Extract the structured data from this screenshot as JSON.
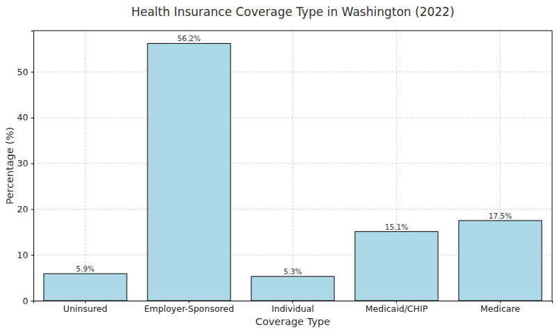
{
  "chart_data": {
    "type": "bar",
    "title": "Health Insurance Coverage Type in Washington (2022)",
    "x_label": "Coverage Type",
    "y_label": "Percentage (%)",
    "categories": [
      "Uninsured",
      "Employer-Sponsored",
      "Individual",
      "Medicaid/CHIP",
      "Medicare"
    ],
    "values": [
      5.9,
      56.2,
      5.3,
      15.1,
      17.5
    ],
    "value_labels": [
      "5.9%",
      "56.2%",
      "5.3%",
      "15.1%",
      "17.5%"
    ],
    "color": "#add8e6",
    "ylim": [
      0,
      59
    ],
    "yticks": [
      0,
      10,
      20,
      30,
      40,
      50
    ],
    "grid": true,
    "data_labels": true
  }
}
